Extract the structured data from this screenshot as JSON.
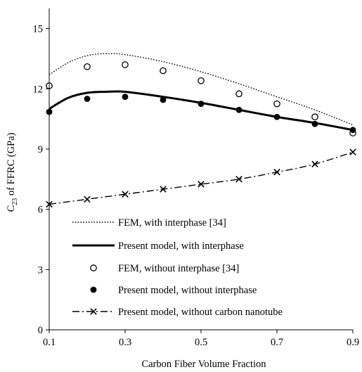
{
  "chart_data": {
    "type": "line",
    "title": "",
    "xlabel": "Carbon Fiber Volume Fraction",
    "ylabel": {
      "base": "C",
      "sub": "23",
      "rest": " of FFRC (GPa)"
    },
    "xlim": [
      0.1,
      0.9
    ],
    "ylim": [
      0,
      16
    ],
    "xticks": [
      0.1,
      0.3,
      0.5,
      0.7,
      0.9
    ],
    "xtick_labels": [
      "0.1",
      "0.3",
      "0.5",
      "0.7",
      "0.9"
    ],
    "yticks": [
      0,
      3,
      6,
      9,
      12,
      15
    ],
    "ytick_labels": [
      "0",
      "3",
      "6",
      "9",
      "12",
      "15"
    ],
    "grid": false,
    "legend_position": "bottom-left",
    "series": [
      {
        "name": "FEM, with interphase [34]",
        "style": "dotted-line",
        "color": "#000000",
        "x": [
          0.1,
          0.15,
          0.2,
          0.25,
          0.3,
          0.4,
          0.5,
          0.6,
          0.7,
          0.8,
          0.9
        ],
        "y": [
          12.7,
          13.3,
          13.65,
          13.75,
          13.7,
          13.35,
          12.85,
          12.25,
          11.6,
          10.95,
          10.2
        ]
      },
      {
        "name": "Present model, with interphase",
        "style": "solid-line",
        "color": "#000000",
        "x": [
          0.1,
          0.15,
          0.2,
          0.25,
          0.3,
          0.4,
          0.5,
          0.6,
          0.7,
          0.8,
          0.9
        ],
        "y": [
          11.0,
          11.55,
          11.8,
          11.85,
          11.85,
          11.6,
          11.3,
          10.95,
          10.6,
          10.3,
          9.95
        ]
      },
      {
        "name": "FEM, without interphase [34]",
        "style": "open-circle",
        "color": "#000000",
        "x": [
          0.1,
          0.2,
          0.3,
          0.4,
          0.5,
          0.6,
          0.7,
          0.8,
          0.9
        ],
        "y": [
          12.15,
          13.1,
          13.2,
          12.9,
          12.4,
          11.75,
          11.25,
          10.6,
          9.8
        ]
      },
      {
        "name": "Present model, without interphase",
        "style": "filled-circle",
        "color": "#000000",
        "x": [
          0.1,
          0.2,
          0.3,
          0.4,
          0.5,
          0.6,
          0.7,
          0.8,
          0.9
        ],
        "y": [
          10.85,
          11.5,
          11.6,
          11.45,
          11.25,
          10.95,
          10.6,
          10.25,
          9.95
        ]
      },
      {
        "name": "Present model, without carbon nanotube",
        "style": "dash-dot-cross",
        "color": "#000000",
        "x": [
          0.1,
          0.2,
          0.3,
          0.4,
          0.5,
          0.6,
          0.7,
          0.8,
          0.9
        ],
        "y": [
          6.25,
          6.5,
          6.75,
          7.0,
          7.25,
          7.5,
          7.85,
          8.25,
          8.85
        ]
      }
    ]
  }
}
